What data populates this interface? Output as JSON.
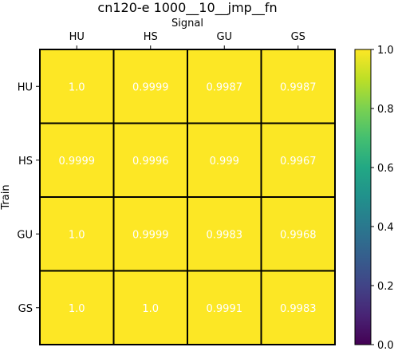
{
  "chart_data": {
    "type": "heatmap",
    "title": "cn120-e 1000__10__jmp__fn",
    "xlabel": "Signal",
    "ylabel": "Train",
    "x_categories": [
      "HU",
      "HS",
      "GU",
      "GS"
    ],
    "y_categories": [
      "HU",
      "HS",
      "GU",
      "GS"
    ],
    "values": [
      [
        1.0,
        0.9999,
        0.9987,
        0.9987
      ],
      [
        0.9999,
        0.9996,
        0.999,
        0.9967
      ],
      [
        1.0,
        0.9999,
        0.9983,
        0.9968
      ],
      [
        1.0,
        1.0,
        0.9991,
        0.9983
      ]
    ],
    "cell_labels": [
      [
        "1.0",
        "0.9999",
        "0.9987",
        "0.9987"
      ],
      [
        "0.9999",
        "0.9996",
        "0.999",
        "0.9967"
      ],
      [
        "1.0",
        "0.9999",
        "0.9983",
        "0.9968"
      ],
      [
        "1.0",
        "1.0",
        "0.9991",
        "0.9983"
      ]
    ],
    "colorbar": {
      "colormap": "viridis",
      "range": [
        0.0,
        1.0
      ],
      "ticks": [
        0.0,
        0.2,
        0.4,
        0.6,
        0.8,
        1.0
      ],
      "tick_labels": [
        "0.0",
        "0.2",
        "0.4",
        "0.6",
        "0.8",
        "1.0"
      ]
    },
    "x_axis_position": "top",
    "grid": true
  }
}
